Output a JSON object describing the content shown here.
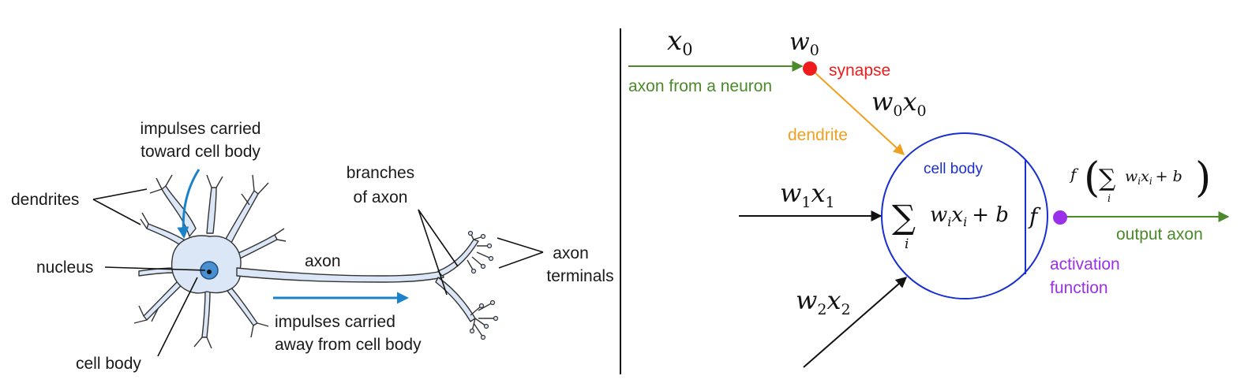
{
  "colors": {
    "green": "#4a8a2a",
    "red": "#ee1c1c",
    "orange": "#f0a020",
    "blue": "#1a2fd0",
    "purple": "#9a30e8",
    "arrow_blue": "#1a82c8",
    "neuron_fill": "#dbe7f6",
    "nucleus": "#4a8fd0",
    "black": "#111111"
  },
  "biological": {
    "impulses_toward_line1": "impulses carried",
    "impulses_toward_line2": "toward cell body",
    "dendrites": "dendrites",
    "nucleus": "nucleus",
    "cell_body": "cell body",
    "axon": "axon",
    "branches_line1": "branches",
    "branches_line2": "of axon",
    "axon_terminals_line1": "axon",
    "axon_terminals_line2": "terminals",
    "impulses_away_line1": "impulses carried",
    "impulses_away_line2": "away from cell body"
  },
  "model": {
    "x0": "x",
    "x0_sub": "0",
    "w0": "w",
    "w0_sub": "0",
    "synapse": "synapse",
    "axon_from_neuron": "axon from a neuron",
    "w0x0_w": "w",
    "w0x0_w_sub": "0",
    "w0x0_x": "x",
    "w0x0_x_sub": "0",
    "dendrite": "dendrite",
    "cell_body": "cell body",
    "w1x1_w": "w",
    "w1x1_w_sub": "1",
    "w1x1_x": "x",
    "w1x1_x_sub": "1",
    "w2x2_w": "w",
    "w2x2_w_sub": "2",
    "w2x2_x": "x",
    "w2x2_x_sub": "2",
    "sum_symbol": "∑",
    "sum_index": "i",
    "sum_w": "w",
    "sum_w_sub": "i",
    "sum_x": "x",
    "sum_x_sub": "i",
    "sum_plus_b": "+ b",
    "f_symbol": "f",
    "output_f": "f",
    "output_open_paren": "(",
    "output_close_paren": ")",
    "output_sum_symbol": "∑",
    "output_sum_index": "i",
    "output_w": "w",
    "output_w_sub": "i",
    "output_x": "x",
    "output_x_sub": "i",
    "output_plus_b": "+ b",
    "output_axon": "output axon",
    "activation_line1": "activation",
    "activation_line2": "function"
  }
}
